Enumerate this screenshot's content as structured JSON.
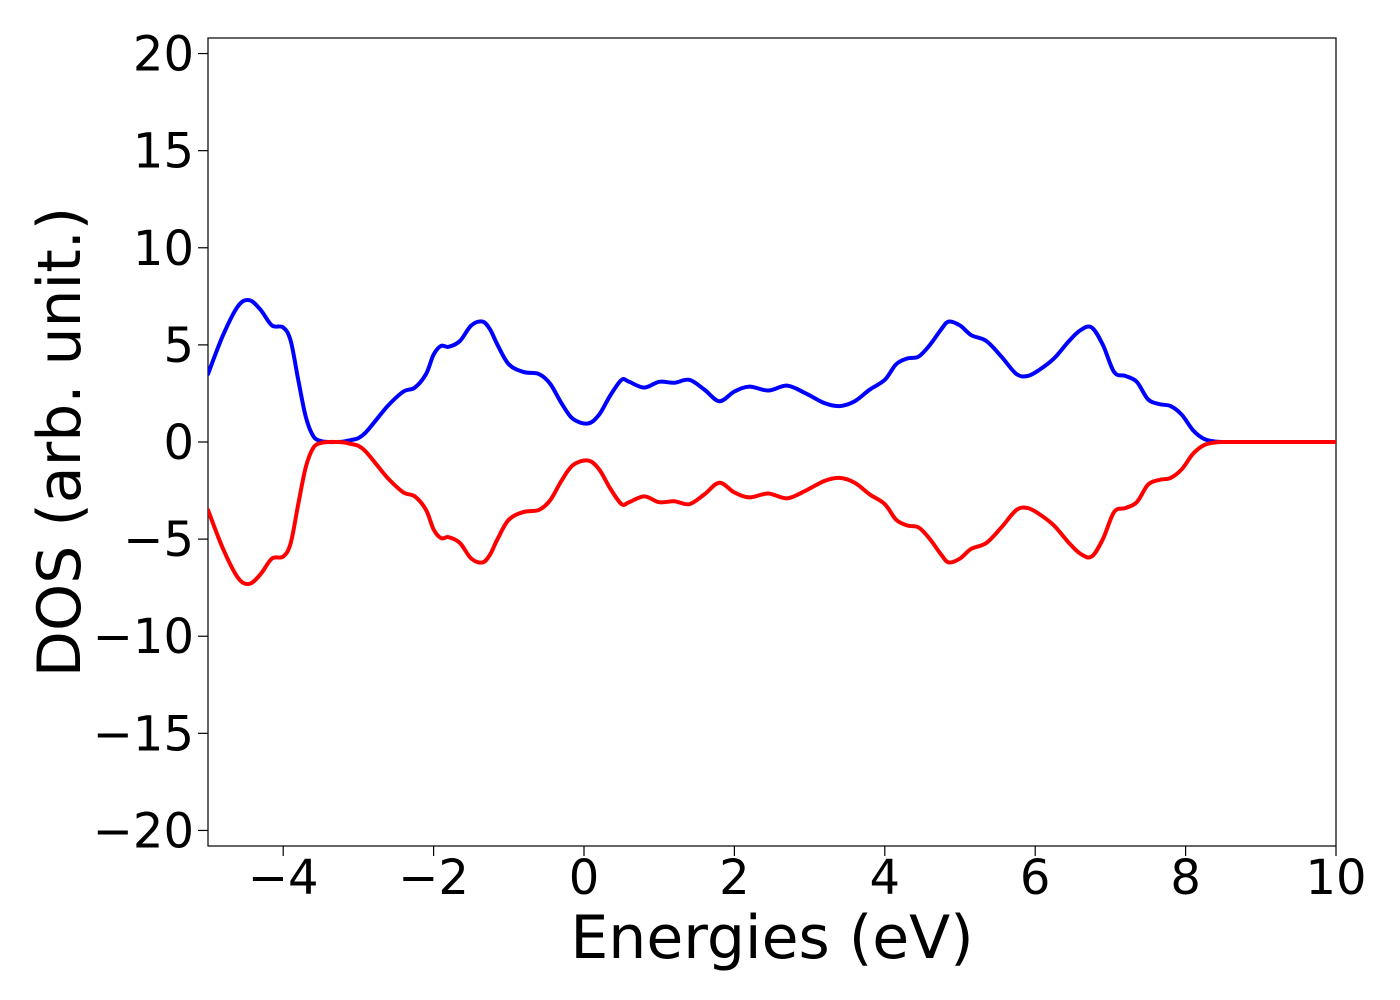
{
  "chart_data": {
    "type": "line",
    "xlabel": "Energies (eV)",
    "ylabel": "DOS (arb. unit.)",
    "xlim": [
      -5,
      10
    ],
    "ylim": [
      -20.8,
      20.8
    ],
    "xticks": [
      -4,
      -2,
      0,
      2,
      4,
      6,
      8,
      10
    ],
    "xtick_labels": [
      "−4",
      "−2",
      "0",
      "2",
      "4",
      "6",
      "8",
      "10"
    ],
    "yticks": [
      -20,
      -15,
      -10,
      -5,
      0,
      5,
      10,
      15,
      20
    ],
    "ytick_labels": [
      "−20",
      "−15",
      "−10",
      "−5",
      "0",
      "5",
      "10",
      "15",
      "20"
    ],
    "grid": false,
    "legend": "none",
    "series": [
      {
        "color": "#0000ff",
        "x": [
          -5.0,
          -4.8,
          -4.6,
          -4.45,
          -4.3,
          -4.15,
          -4.0,
          -3.9,
          -3.8,
          -3.7,
          -3.6,
          -3.5,
          -3.4,
          -3.3,
          -3.2,
          -3.1,
          -3.0,
          -2.9,
          -2.75,
          -2.6,
          -2.4,
          -2.25,
          -2.1,
          -2.0,
          -1.9,
          -1.8,
          -1.65,
          -1.5,
          -1.35,
          -1.25,
          -1.15,
          -1.0,
          -0.8,
          -0.6,
          -0.45,
          -0.3,
          -0.15,
          0.05,
          0.2,
          0.35,
          0.5,
          0.6,
          0.8,
          1.0,
          1.2,
          1.4,
          1.6,
          1.8,
          2.0,
          2.2,
          2.45,
          2.7,
          2.95,
          3.2,
          3.4,
          3.6,
          3.8,
          4.0,
          4.15,
          4.3,
          4.45,
          4.6,
          4.75,
          4.85,
          5.0,
          5.15,
          5.35,
          5.55,
          5.75,
          5.9,
          6.05,
          6.25,
          6.45,
          6.6,
          6.75,
          6.9,
          7.05,
          7.2,
          7.35,
          7.5,
          7.65,
          7.8,
          7.95,
          8.1,
          8.25,
          8.4,
          8.55,
          8.7,
          9.0,
          9.5,
          10.0
        ],
        "y": [
          3.5,
          5.5,
          7.0,
          7.3,
          6.8,
          6.0,
          5.9,
          5.2,
          3.2,
          1.3,
          0.3,
          0.05,
          0.0,
          0.0,
          0.02,
          0.1,
          0.2,
          0.5,
          1.2,
          1.9,
          2.6,
          2.8,
          3.5,
          4.5,
          4.95,
          4.9,
          5.2,
          6.0,
          6.2,
          5.8,
          5.0,
          4.0,
          3.6,
          3.5,
          3.0,
          2.0,
          1.2,
          0.95,
          1.4,
          2.4,
          3.2,
          3.1,
          2.8,
          3.1,
          3.05,
          3.2,
          2.7,
          2.1,
          2.6,
          2.85,
          2.65,
          2.9,
          2.5,
          2.0,
          1.85,
          2.1,
          2.7,
          3.2,
          4.0,
          4.3,
          4.4,
          5.0,
          5.8,
          6.2,
          6.0,
          5.5,
          5.2,
          4.4,
          3.5,
          3.4,
          3.7,
          4.3,
          5.2,
          5.75,
          5.9,
          5.0,
          3.6,
          3.4,
          3.1,
          2.2,
          1.95,
          1.85,
          1.4,
          0.6,
          0.15,
          0.02,
          0.0,
          0.0,
          0.0,
          0.0,
          0.0
        ]
      },
      {
        "color": "#ff0000",
        "x": [
          -5.0,
          -4.8,
          -4.6,
          -4.45,
          -4.3,
          -4.15,
          -4.0,
          -3.9,
          -3.8,
          -3.7,
          -3.6,
          -3.5,
          -3.4,
          -3.3,
          -3.2,
          -3.1,
          -3.0,
          -2.9,
          -2.75,
          -2.6,
          -2.4,
          -2.25,
          -2.1,
          -2.0,
          -1.9,
          -1.8,
          -1.65,
          -1.5,
          -1.35,
          -1.25,
          -1.15,
          -1.0,
          -0.8,
          -0.6,
          -0.45,
          -0.3,
          -0.15,
          0.05,
          0.2,
          0.35,
          0.5,
          0.6,
          0.8,
          1.0,
          1.2,
          1.4,
          1.6,
          1.8,
          2.0,
          2.2,
          2.45,
          2.7,
          2.95,
          3.2,
          3.4,
          3.6,
          3.8,
          4.0,
          4.15,
          4.3,
          4.45,
          4.6,
          4.75,
          4.85,
          5.0,
          5.15,
          5.35,
          5.55,
          5.75,
          5.9,
          6.05,
          6.25,
          6.45,
          6.6,
          6.75,
          6.9,
          7.05,
          7.2,
          7.35,
          7.5,
          7.65,
          7.8,
          7.95,
          8.1,
          8.25,
          8.4,
          8.55,
          8.7,
          9.0,
          9.5,
          10.0
        ],
        "y": [
          -3.5,
          -5.5,
          -7.0,
          -7.3,
          -6.8,
          -6.0,
          -5.9,
          -5.2,
          -3.2,
          -1.3,
          -0.3,
          -0.05,
          0.0,
          0.0,
          -0.02,
          -0.1,
          -0.2,
          -0.5,
          -1.2,
          -1.9,
          -2.6,
          -2.8,
          -3.5,
          -4.5,
          -4.95,
          -4.9,
          -5.2,
          -6.0,
          -6.2,
          -5.8,
          -5.0,
          -4.0,
          -3.6,
          -3.5,
          -3.0,
          -2.0,
          -1.2,
          -0.95,
          -1.4,
          -2.4,
          -3.2,
          -3.1,
          -2.8,
          -3.1,
          -3.05,
          -3.2,
          -2.7,
          -2.1,
          -2.6,
          -2.85,
          -2.65,
          -2.9,
          -2.5,
          -2.0,
          -1.85,
          -2.1,
          -2.7,
          -3.2,
          -4.0,
          -4.3,
          -4.4,
          -5.0,
          -5.8,
          -6.2,
          -6.0,
          -5.5,
          -5.2,
          -4.4,
          -3.5,
          -3.4,
          -3.7,
          -4.3,
          -5.2,
          -5.75,
          -5.9,
          -5.0,
          -3.6,
          -3.4,
          -3.1,
          -2.2,
          -1.95,
          -1.85,
          -1.4,
          -0.6,
          -0.15,
          -0.02,
          0.0,
          0.0,
          0.0,
          0.0,
          0.0
        ]
      }
    ]
  }
}
